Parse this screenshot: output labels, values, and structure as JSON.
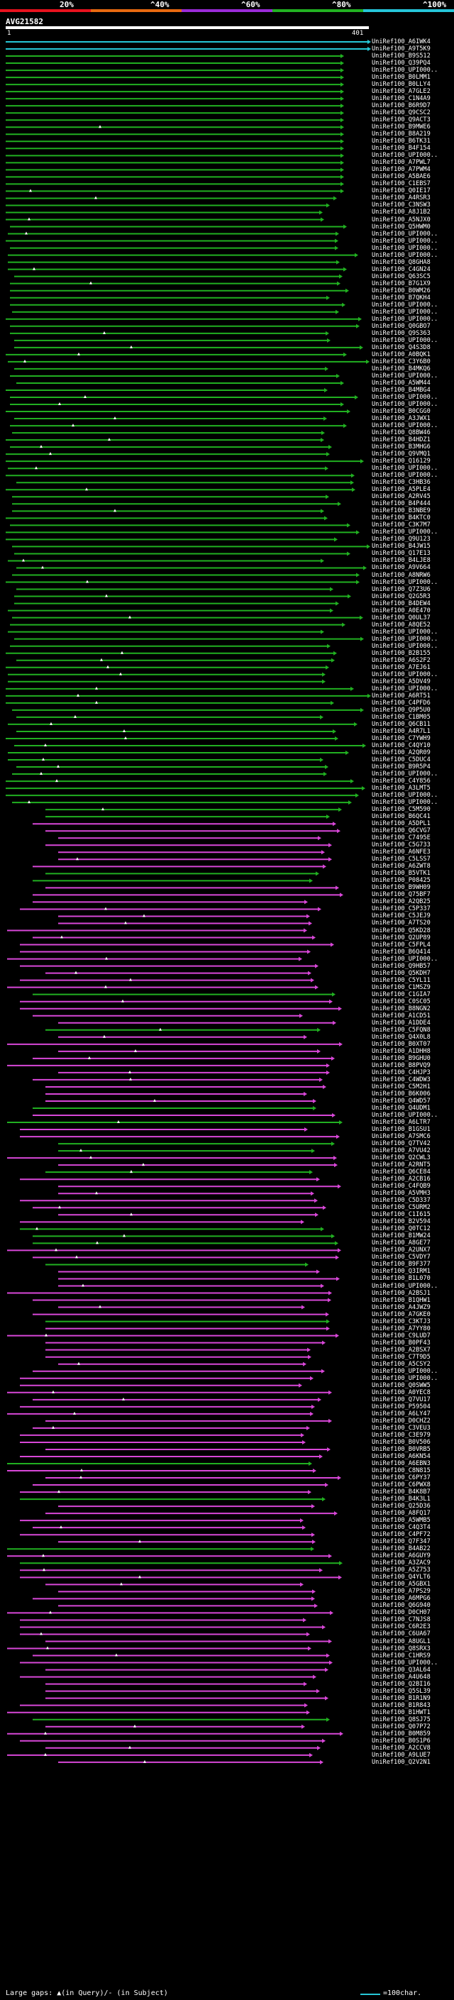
{
  "query": {
    "id": "AVG21582",
    "start": "1",
    "end": "401"
  },
  "scale": [
    {
      "label": "20%",
      "color": "#e8121e"
    },
    {
      "label": "^40%",
      "color": "#e86a10"
    },
    {
      "label": "^60%",
      "color": "#9a2bd8"
    },
    {
      "label": "^80%",
      "color": "#22b222"
    },
    {
      "label": "^100%",
      "color": "#26c6da"
    }
  ],
  "colors": {
    "green": "#21b021",
    "magenta": "#d847d8",
    "cyan": "#27c8d8",
    "white": "#ffffff"
  },
  "footer": {
    "legend": "Large gaps: ▲(in Query)/- (in Subject)",
    "scale_note": "=100char."
  },
  "hits": [
    "UniRef100_A6IWK4",
    "UniRef100_A9T5K9",
    "UniRef100_B9S512",
    "UniRef100_Q39PQ4",
    "UniRef100_UPI000..",
    "UniRef100_B0LMM1",
    "UniRef100_B0LLY4",
    "UniRef100_A7GLE2",
    "UniRef100_C1N4A9",
    "UniRef100_B6R9D7",
    "UniRef100_Q9CSC2",
    "UniRef100_Q9ACT3",
    "UniRef100_B9MWE6",
    "UniRef100_B8A219",
    "UniRef100_B6TK31",
    "UniRef100_B4F154",
    "UniRef100_UPI000..",
    "UniRef100_A7PWL7",
    "UniRef100_A7PWM4",
    "UniRef100_A5BAE6",
    "UniRef100_C1EBS7",
    "UniRef100_Q0IE17",
    "UniRef100_A4RSR3",
    "UniRef100_C3NSW3",
    "UniRef100_A8J1B2",
    "UniRef100_A5NJX0",
    "UniRef100_Q5HWM0",
    "UniRef100_UPI000..",
    "UniRef100_UPI000..",
    "UniRef100_UPI000..",
    "UniRef100_UPI000..",
    "UniRef100_Q8GHA8",
    "UniRef100_C4GN24",
    "UniRef100_Q63SC5",
    "UniRef100_B7G1X9",
    "UniRef100_B0WM26",
    "UniRef100_B7QKH4",
    "UniRef100_UPI000..",
    "UniRef100_UPI000..",
    "UniRef100_UPI000..",
    "UniRef100_Q0GBO7",
    "UniRef100_Q9S363",
    "UniRef100_UPI000..",
    "UniRef100_Q4S3D8",
    "UniRef100_A0BQK1",
    "UniRef100_C3Y6B0",
    "UniRef100_B4MKQ6",
    "UniRef100_UPI000..",
    "UniRef100_A5WM44",
    "UniRef100_B4MBG4",
    "UniRef100_UPI000..",
    "UniRef100_UPI000..",
    "UniRef100_B0CGG0",
    "UniRef100_A3JWX1",
    "UniRef100_UPI000..",
    "UniRef100_Q8BW46",
    "UniRef100_B4HDZ1",
    "UniRef100_B3MHG6",
    "UniRef100_Q9VMQ1",
    "UniRef100_Q16129",
    "UniRef100_UPI000..",
    "UniRef100_UPI000..",
    "UniRef100_C3HB36",
    "UniRef100_A5PLE4",
    "UniRef100_A2RV45",
    "UniRef100_B4P444",
    "UniRef100_B3NBE9",
    "UniRef100_B4KTC0",
    "UniRef100_C3K7M7",
    "UniRef100_UPI000..",
    "UniRef100_Q9U123",
    "UniRef100_B4JW15",
    "UniRef100_Q17E13",
    "UniRef100_B4LJE8",
    "UniRef100_A9V664",
    "UniRef100_A8NRW6",
    "UniRef100_UPI000..",
    "UniRef100_Q7Z3U6",
    "UniRef100_Q2G5R3",
    "UniRef100_B4DEW4",
    "UniRef100_A0E470",
    "UniRef100_Q0UL37",
    "UniRef100_A8QE52",
    "UniRef100_UPI000..",
    "UniRef100_UPI000..",
    "UniRef100_UPI000..",
    "UniRef100_B2B155",
    "UniRef100_A6S2F2",
    "UniRef100_A7EJ61",
    "UniRef100_UPI000..",
    "UniRef100_A5DV49",
    "UniRef100_UPI000..",
    "UniRef100_A6RT51",
    "UniRef100_C4PFD6",
    "UniRef100_Q9P5U0",
    "UniRef100_C1BM05",
    "UniRef100_Q6CB11",
    "UniRef100_A4R7L1",
    "UniRef100_C7YWH9",
    "UniRef100_C4QY10",
    "UniRef100_A2QR09",
    "UniRef100_C5DUC4",
    "UniRef100_B9R5P4",
    "UniRef100_UPI000..",
    "UniRef100_C4Y856",
    "UniRef100_A3LMT5",
    "UniRef100_UPI000..",
    "UniRef100_UPI000..",
    "UniRef100_C5M590",
    "UniRef100_B6QC41",
    "UniRef100_A5DPL1",
    "UniRef100_Q6CVG7",
    "UniRef100_C7495E",
    "UniRef100_C5G733",
    "UniRef100_A6NFE3",
    "UniRef100_C5LSS7",
    "UniRef100_A6ZWT8",
    "UniRef100_B5VTK1",
    "UniRef100_P08425",
    "UniRef100_B9WH09",
    "UniRef100_Q75BF7",
    "UniRef100_A2QB25",
    "UniRef100_C5P337",
    "UniRef100_C5JEJ9",
    "UniRef100_A7TS20",
    "UniRef100_Q5KD28",
    "UniRef100_Q2UP89",
    "UniRef100_C5FPL4",
    "UniRef100_B6Q414",
    "UniRef100_UPI000..",
    "UniRef100_Q9HB57",
    "UniRef100_Q5KDH7",
    "UniRef100_C5YL11",
    "UniRef100_C1MSZ9",
    "UniRef100_C1GIA7",
    "UniRef100_C0SC05",
    "UniRef100_B8NGN2",
    "UniRef100_A1CD51",
    "UniRef100_A1DDE4",
    "UniRef100_C5FQN8",
    "UniRef100_Q4X0L8",
    "UniRef100_B0XT07",
    "UniRef100_A1DHH8",
    "UniRef100_B9GHU0",
    "UniRef100_B8PVQ9",
    "UniRef100_C4HJP3",
    "UniRef100_C4WDW3",
    "UniRef100_C5M2H1",
    "UniRef100_B6K006",
    "UniRef100_Q4WD57",
    "UniRef100_Q4UDM1",
    "UniRef100_UPI000..",
    "UniRef100_A6LTR7",
    "UniRef100_B1GSU1",
    "UniRef100_A7SMC6",
    "UniRef100_Q7TV42",
    "UniRef100_A7VU42",
    "UniRef100_Q2CWL3",
    "UniRef100_A2RNT5",
    "UniRef100_Q6CE84",
    "UniRef100_A2CB16",
    "UniRef100_C4FQB9",
    "UniRef100_A5VMH3",
    "UniRef100_C5D337",
    "UniRef100_C5URM2",
    "UniRef100_C1I615",
    "UniRef100_B2V594",
    "UniRef100_Q0TC12",
    "UniRef100_B1MW24",
    "UniRef100_A8GE77",
    "UniRef100_A2UNX7",
    "UniRef100_C5VDY7",
    "UniRef100_B9F377",
    "UniRef100_Q3IRM1",
    "UniRef100_B1L070",
    "UniRef100_UPI000..",
    "UniRef100_A2BSJ1",
    "UniRef100_B1QHW1",
    "UniRef100_A4JWZ9",
    "UniRef100_A7GKE0",
    "UniRef100_C3KTJ3",
    "UniRef100_A7YY80",
    "UniRef100_C9LUD7",
    "UniRef100_B0PF43",
    "UniRef100_A2BSX7",
    "UniRef100_C7T9D5",
    "UniRef100_A5CSY2",
    "UniRef100_UPI000..",
    "UniRef100_UPI000..",
    "UniRef100_Q0SWW5",
    "UniRef100_A0YEC8",
    "UniRef100_Q7VU17",
    "UniRef100_P59504",
    "UniRef100_A6LY47",
    "UniRef100_D0CHZ2",
    "UniRef100_C3VEU3",
    "UniRef100_C3E979",
    "UniRef100_B0V506",
    "UniRef100_B0VRB5",
    "UniRef100_A6KN54",
    "UniRef100_A6EBN3",
    "UniRef100_C8N815",
    "UniRef100_C6PY37",
    "UniRef100_C6PWX8",
    "UniRef100_B4K8B7",
    "UniRef100_B4K3L1",
    "UniRef100_Q25D36",
    "UniRef100_A8FQ17",
    "UniRef100_A5WMB5",
    "UniRef100_C4Q3T4",
    "UniRef100_C4PF72",
    "UniRef100_Q7F347",
    "UniRef100_B4AB22",
    "UniRef100_A6GUY9",
    "UniRef100_A3ZAC9",
    "UniRef100_A5Z753",
    "UniRef100_Q4YLT6",
    "UniRef100_A5GBX1",
    "UniRef100_A7PS29",
    "UniRef100_A6MPG6",
    "UniRef100_Q6G940",
    "UniRef100_D0CH07",
    "UniRef100_C7NJS8",
    "UniRef100_C6R2E3",
    "UniRef100_C6UA67",
    "UniRef100_A8UGL1",
    "UniRef100_Q8SRX3",
    "UniRef100_C1HRS9",
    "UniRef100_UPI000..",
    "UniRef100_Q3AL64",
    "UniRef100_A4U648",
    "UniRef100_Q2BI16",
    "UniRef100_Q5SL39",
    "UniRef100_B1R1N9",
    "UniRef100_B1R843",
    "UniRef100_B1HWT1",
    "UniRef100_Q8SJ75",
    "UniRef100_Q07P72",
    "UniRef100_B0M859",
    "UniRef100_B0S1P6",
    "UniRef100_A2CCV8",
    "UniRef100_A9LUE7",
    "UniRef100_Q2V2N1"
  ]
}
